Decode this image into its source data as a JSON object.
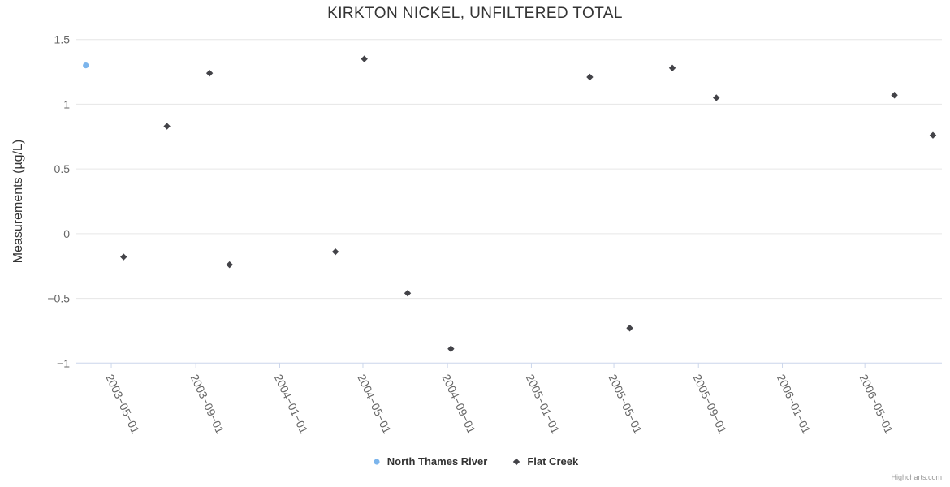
{
  "chart_data": {
    "type": "scatter",
    "title": "KIRKTON NICKEL, UNFILTERED TOTAL",
    "xlabel": "",
    "ylabel": "Measurements (µg/L)",
    "ylim": [
      -1,
      1.5
    ],
    "xlim": [
      "2003-03-10",
      "2006-08-21"
    ],
    "grid": "horizontal-only",
    "legend_position": "bottom-center",
    "y_tick_values": [
      1.5,
      1,
      0.5,
      0,
      -0.5,
      -1
    ],
    "y_tick_labels": [
      "1.5",
      "1",
      "0.5",
      "0",
      "−0.5",
      "−1"
    ],
    "x_tick_dates": [
      "2003-05-01",
      "2003-09-01",
      "2004-01-01",
      "2004-05-01",
      "2004-09-01",
      "2005-01-01",
      "2005-05-01",
      "2005-09-01",
      "2006-01-01",
      "2006-05-01"
    ],
    "x_tick_labels": [
      "2003−05−01",
      "2003−09−01",
      "2004−01−01",
      "2004−05−01",
      "2004−09−01",
      "2005−01−01",
      "2005−05−01",
      "2005−09−01",
      "2006−01−01",
      "2006−05−01"
    ],
    "series": [
      {
        "name": "North Thames River",
        "color": "#7cb5ec",
        "marker": "circle",
        "points": [
          {
            "date": "2003-03-25",
            "value": 1.3
          }
        ]
      },
      {
        "name": "Flat Creek",
        "color": "#434348",
        "marker": "diamond",
        "points": [
          {
            "date": "2003-05-19",
            "value": -0.18
          },
          {
            "date": "2003-07-21",
            "value": 0.83
          },
          {
            "date": "2003-09-21",
            "value": 1.24
          },
          {
            "date": "2003-10-20",
            "value": -0.24
          },
          {
            "date": "2004-03-22",
            "value": -0.14
          },
          {
            "date": "2004-05-03",
            "value": 1.35
          },
          {
            "date": "2004-07-05",
            "value": -0.46
          },
          {
            "date": "2004-09-06",
            "value": -0.89
          },
          {
            "date": "2005-03-27",
            "value": 1.21
          },
          {
            "date": "2005-05-24",
            "value": -0.73
          },
          {
            "date": "2005-07-25",
            "value": 1.28
          },
          {
            "date": "2005-09-27",
            "value": 1.05
          },
          {
            "date": "2006-06-13",
            "value": 1.07
          },
          {
            "date": "2006-08-08",
            "value": 0.76
          }
        ]
      }
    ]
  },
  "credits": "Highcharts.com"
}
